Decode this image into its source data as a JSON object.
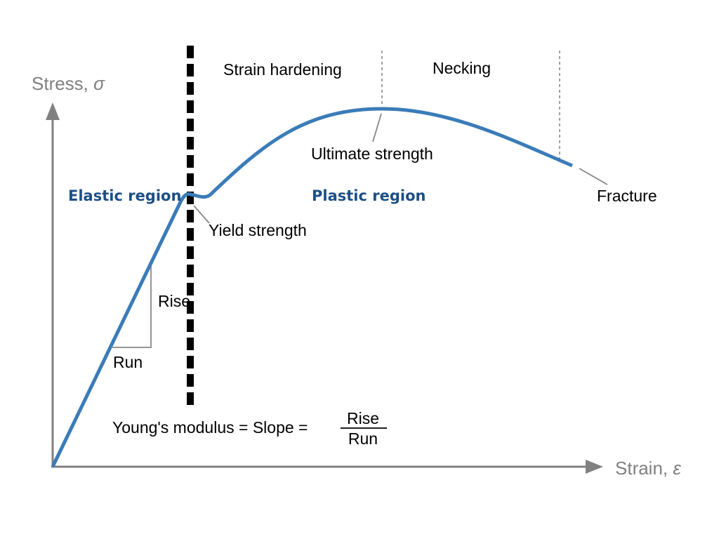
{
  "axes": {
    "y_label_text": "Stress, ",
    "y_label_symbol": "σ",
    "x_label_text": "Strain, ",
    "x_label_symbol": "ε",
    "color": "#808080"
  },
  "regions": {
    "elastic": "Elastic region",
    "plastic": "Plastic region",
    "color": "#1d4f86"
  },
  "phases": {
    "strain_hardening": "Strain hardening",
    "necking": "Necking"
  },
  "points": {
    "yield_strength": "Yield strength",
    "ultimate_strength": "Ultimate strength",
    "fracture": "Fracture"
  },
  "slope_triangle": {
    "rise": "Rise",
    "run": "Run"
  },
  "formula": {
    "text": "Young's modulus = Slope =",
    "numerator": "Rise",
    "denominator": "Run"
  },
  "curve": {
    "color": "#3a7cb8"
  }
}
